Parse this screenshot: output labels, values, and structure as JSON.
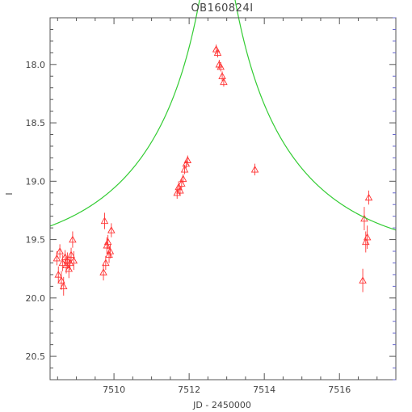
{
  "chart_data": {
    "type": "scatter",
    "title": "OB160824I",
    "xlabel": "JD - 2450000",
    "ylabel": "I",
    "xlim": [
      7508.3,
      7517.5
    ],
    "ylim": [
      20.7,
      17.6
    ],
    "y_inverted": true,
    "xticks": [
      7510,
      7512,
      7514,
      7516
    ],
    "yticks": [
      18.0,
      18.5,
      19.0,
      19.5,
      20.0,
      20.5
    ],
    "xtick_labels": [
      "7510",
      "7512",
      "7514",
      "7516"
    ],
    "ytick_labels": [
      "18.0",
      "18.5",
      "19.0",
      "19.5",
      "20.0",
      "20.5"
    ],
    "colors": {
      "data": "#ff3333",
      "model": "#33cc33",
      "axes": "#555555",
      "text": "#444444"
    },
    "series": [
      {
        "marker": "triangle-open",
        "color": "#ff3333",
        "x": [
          7508.48,
          7508.52,
          7508.56,
          7508.6,
          7508.63,
          7508.66,
          7508.7,
          7508.73,
          7508.76,
          7508.8,
          7508.83,
          7508.86,
          7508.9,
          7508.93,
          7509.72,
          7509.75,
          7509.78,
          7509.81,
          7509.84,
          7509.87,
          7509.9,
          7509.93,
          7511.68,
          7511.72,
          7511.76,
          7511.8,
          7511.84,
          7511.88,
          7511.92,
          7511.96,
          7512.72,
          7512.76,
          7512.8,
          7512.84,
          7512.88,
          7512.92,
          7513.75,
          7516.62,
          7516.66,
          7516.7,
          7516.74,
          7516.78
        ],
        "y": [
          19.66,
          19.8,
          19.6,
          19.85,
          19.7,
          19.9,
          19.65,
          19.72,
          19.68,
          19.75,
          19.7,
          19.63,
          19.5,
          19.68,
          19.78,
          19.34,
          19.7,
          19.55,
          19.52,
          19.63,
          19.6,
          19.42,
          19.1,
          19.05,
          19.08,
          19.02,
          18.98,
          18.9,
          18.85,
          18.82,
          17.87,
          17.9,
          18.0,
          18.02,
          18.1,
          18.15,
          18.9,
          19.85,
          19.32,
          19.52,
          19.48,
          19.14
        ],
        "errors": [
          0.06,
          0.07,
          0.06,
          0.08,
          0.07,
          0.08,
          0.06,
          0.07,
          0.07,
          0.08,
          0.06,
          0.06,
          0.07,
          0.08,
          0.07,
          0.07,
          0.06,
          0.07,
          0.06,
          0.07,
          0.06,
          0.06,
          0.05,
          0.05,
          0.04,
          0.04,
          0.04,
          0.04,
          0.04,
          0.04,
          0.04,
          0.04,
          0.04,
          0.04,
          0.04,
          0.04,
          0.05,
          0.1,
          0.1,
          0.09,
          0.1,
          0.06
        ]
      },
      {
        "line": "model",
        "color": "#33cc33",
        "t0": 7512.75,
        "u0": 0.065,
        "tE": 4.2,
        "I_base": 19.67,
        "x_range": [
          7508.3,
          7517.5
        ]
      }
    ],
    "grid": false
  }
}
